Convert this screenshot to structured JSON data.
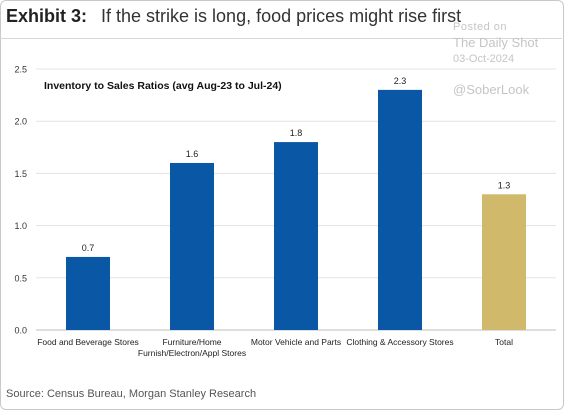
{
  "header": {
    "exhibit": "Exhibit 3:",
    "title": "If the strike is long, food prices might rise first"
  },
  "watermark": {
    "line1": "Posted on",
    "line2": "The Daily Shot",
    "line3": "03-Oct-2024",
    "line4": "@SoberLook"
  },
  "source": "Source: Census Bureau, Morgan Stanley Research",
  "colors": {
    "primary_bar": "#0a57a5",
    "total_bar": "#d0b96a",
    "grid": "#e3e3e3"
  },
  "chart_data": {
    "type": "bar",
    "title": "Inventory to Sales Ratios (avg Aug-23 to Jul-24)",
    "categories": [
      [
        "Food and Beverage Stores"
      ],
      [
        "Furniture/Home",
        "Furnish/Electron/Appl Stores"
      ],
      [
        "Motor Vehicle and Parts"
      ],
      [
        "Clothing & Accessory Stores"
      ],
      [
        "Total"
      ]
    ],
    "values": [
      0.7,
      1.6,
      1.8,
      2.3,
      1.3
    ],
    "value_labels": [
      "0.7",
      "1.6",
      "1.8",
      "2.3",
      "1.3"
    ],
    "highlight_index": 4,
    "ylim": [
      0,
      2.5
    ],
    "yticks": [
      "0.0",
      "0.5",
      "1.0",
      "1.5",
      "2.0",
      "2.5"
    ],
    "grid": true,
    "xlabel": "",
    "ylabel": ""
  }
}
